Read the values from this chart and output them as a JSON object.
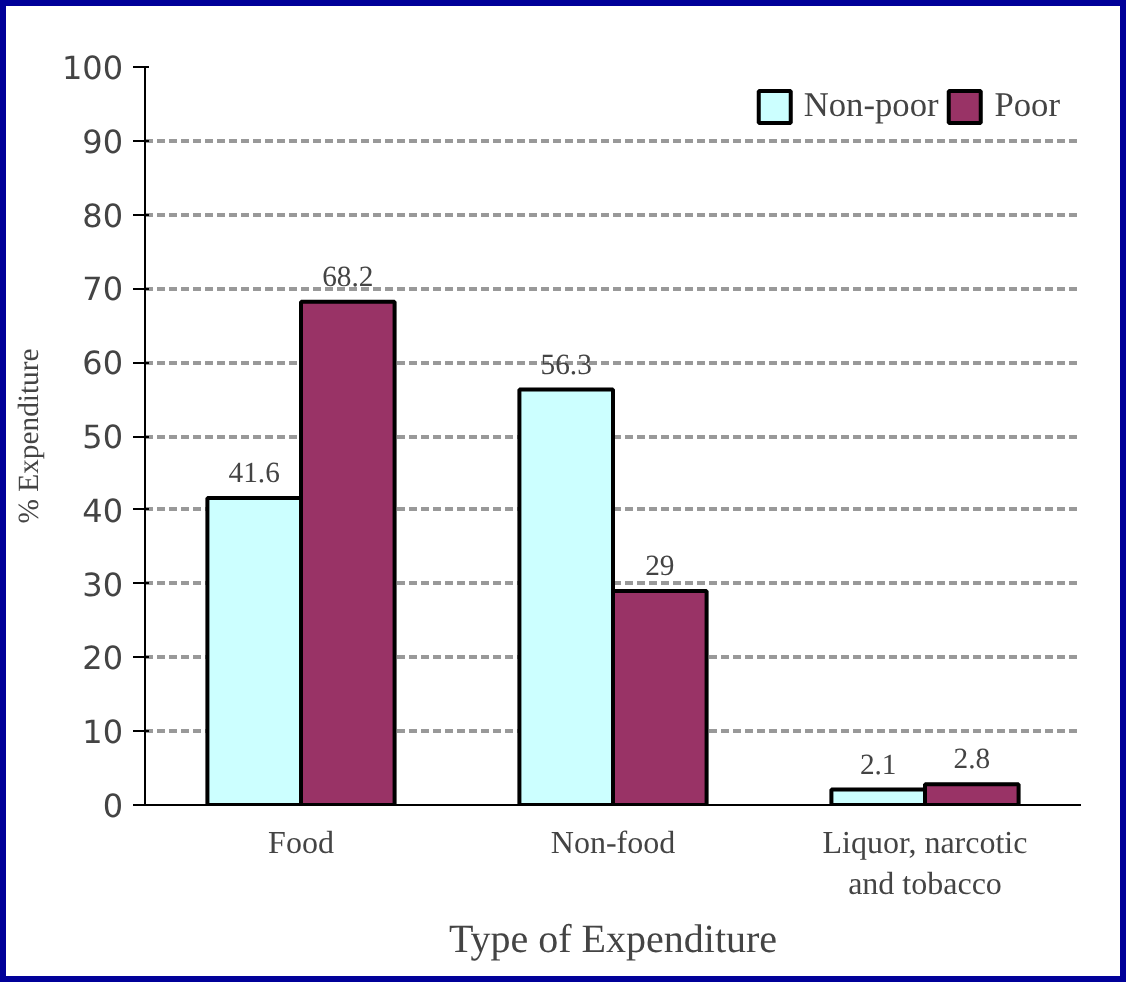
{
  "chart_data": {
    "type": "bar",
    "xlabel": "Type of Expenditure",
    "ylabel": "% Expenditure",
    "categories": [
      "Food",
      "Non-food",
      "Liquor, narcotic and tobacco"
    ],
    "series": [
      {
        "name": "Non-poor",
        "color": "#ccffff",
        "values": [
          41.6,
          56.3,
          2.1
        ]
      },
      {
        "name": "Poor",
        "color": "#993366",
        "values": [
          68.2,
          29,
          2.8
        ]
      }
    ],
    "ylim": [
      0,
      100
    ],
    "yticks": [
      0,
      10,
      20,
      30,
      40,
      50,
      60,
      70,
      80,
      90,
      100
    ],
    "grid": "y",
    "legend": "top right",
    "data_labels": true
  }
}
